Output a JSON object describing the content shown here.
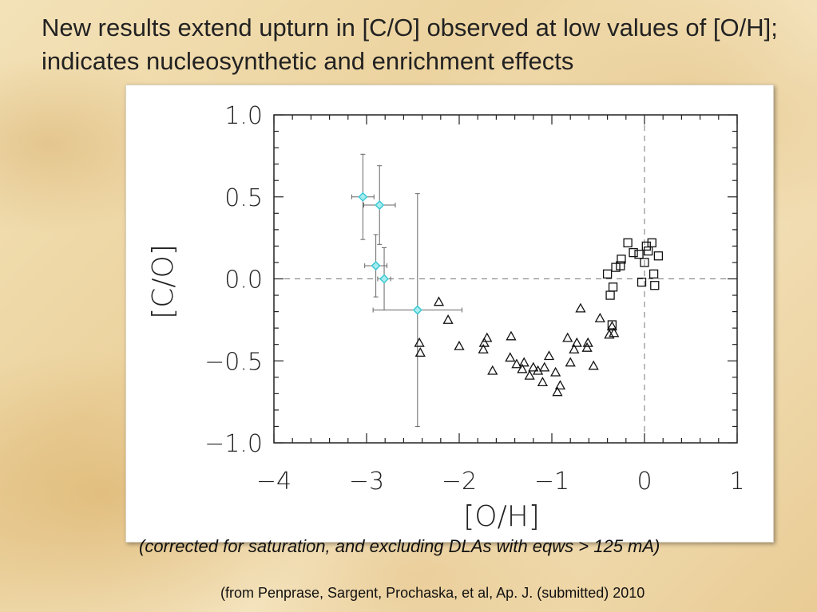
{
  "slide": {
    "title": "New results extend upturn in [C/O] observed at low values of [O/H]; indicates nucleosynthetic and enrichment effects",
    "caption": "(corrected for saturation, and excluding DLAs with eqws > 125 mA)",
    "source": "(from Penprase, Sargent, Prochaska, et al, Ap. J. (submitted) 2010"
  },
  "chart_data": {
    "type": "scatter",
    "xlabel": "[O/H]",
    "ylabel": "[C/O]",
    "xlim": [
      -4,
      1
    ],
    "ylim": [
      -1.0,
      1.0
    ],
    "xticks": [
      -4,
      -3,
      -2,
      -1,
      0,
      1
    ],
    "xtick_labels": [
      "−4",
      "−3",
      "−2",
      "−1",
      "0",
      "1"
    ],
    "yticks": [
      -1.0,
      -0.5,
      0.0,
      0.5,
      1.0
    ],
    "ytick_labels": [
      "−1.0",
      "−0.5",
      "0.0",
      "0.5",
      "1.0"
    ],
    "reference_lines": {
      "x": 0,
      "y": 0,
      "style": "dashed"
    },
    "grid": false,
    "series": [
      {
        "marker": "diamond",
        "color": "#3cc8d2",
        "points": [
          {
            "x": -3.04,
            "y": 0.5,
            "xerr": 0.12,
            "yerr": 0.26
          },
          {
            "x": -2.86,
            "y": 0.45,
            "xerr": 0.17,
            "yerr": 0.24
          },
          {
            "x": -2.9,
            "y": 0.08,
            "xerr": 0.12,
            "yerr": 0.19
          },
          {
            "x": -2.81,
            "y": 0.0,
            "xerr": 0.07,
            "yerr": 0.19
          },
          {
            "x": -2.45,
            "y": -0.19,
            "xerr": 0.48,
            "yerr": 0.71
          }
        ]
      },
      {
        "marker": "triangle",
        "color": "#111111",
        "points": [
          {
            "x": -2.43,
            "y": -0.39
          },
          {
            "x": -2.42,
            "y": -0.45
          },
          {
            "x": -2.22,
            "y": -0.14
          },
          {
            "x": -2.12,
            "y": -0.25
          },
          {
            "x": -2.0,
            "y": -0.41
          },
          {
            "x": -1.74,
            "y": -0.43
          },
          {
            "x": -1.73,
            "y": -0.39
          },
          {
            "x": -1.7,
            "y": -0.36
          },
          {
            "x": -1.64,
            "y": -0.56
          },
          {
            "x": -1.45,
            "y": -0.48
          },
          {
            "x": -1.44,
            "y": -0.35
          },
          {
            "x": -1.38,
            "y": -0.52
          },
          {
            "x": -1.32,
            "y": -0.55
          },
          {
            "x": -1.3,
            "y": -0.51
          },
          {
            "x": -1.24,
            "y": -0.59
          },
          {
            "x": -1.2,
            "y": -0.54
          },
          {
            "x": -1.15,
            "y": -0.56
          },
          {
            "x": -1.1,
            "y": -0.63
          },
          {
            "x": -1.08,
            "y": -0.54
          },
          {
            "x": -1.03,
            "y": -0.47
          },
          {
            "x": -0.96,
            "y": -0.57
          },
          {
            "x": -0.94,
            "y": -0.69
          },
          {
            "x": -0.91,
            "y": -0.65
          },
          {
            "x": -0.83,
            "y": -0.36
          },
          {
            "x": -0.8,
            "y": -0.51
          },
          {
            "x": -0.76,
            "y": -0.43
          },
          {
            "x": -0.73,
            "y": -0.39
          },
          {
            "x": -0.69,
            "y": -0.18
          },
          {
            "x": -0.62,
            "y": -0.42
          },
          {
            "x": -0.61,
            "y": -0.39
          },
          {
            "x": -0.55,
            "y": -0.53
          },
          {
            "x": -0.48,
            "y": -0.24
          },
          {
            "x": -0.38,
            "y": -0.34
          },
          {
            "x": -0.35,
            "y": -0.29
          },
          {
            "x": -0.33,
            "y": -0.33
          }
        ]
      },
      {
        "marker": "square",
        "color": "#111111",
        "points": [
          {
            "x": -0.4,
            "y": 0.03
          },
          {
            "x": -0.37,
            "y": -0.1
          },
          {
            "x": -0.34,
            "y": -0.05
          },
          {
            "x": -0.31,
            "y": 0.07
          },
          {
            "x": -0.35,
            "y": -0.28
          },
          {
            "x": -0.26,
            "y": 0.08
          },
          {
            "x": -0.25,
            "y": 0.12
          },
          {
            "x": -0.18,
            "y": 0.22
          },
          {
            "x": -0.12,
            "y": 0.16
          },
          {
            "x": -0.06,
            "y": 0.15
          },
          {
            "x": -0.03,
            "y": -0.02
          },
          {
            "x": 0.0,
            "y": 0.1
          },
          {
            "x": 0.02,
            "y": 0.2
          },
          {
            "x": 0.04,
            "y": 0.17
          },
          {
            "x": 0.08,
            "y": 0.22
          },
          {
            "x": 0.1,
            "y": 0.03
          },
          {
            "x": 0.11,
            "y": -0.04
          },
          {
            "x": 0.15,
            "y": 0.14
          }
        ]
      }
    ]
  }
}
